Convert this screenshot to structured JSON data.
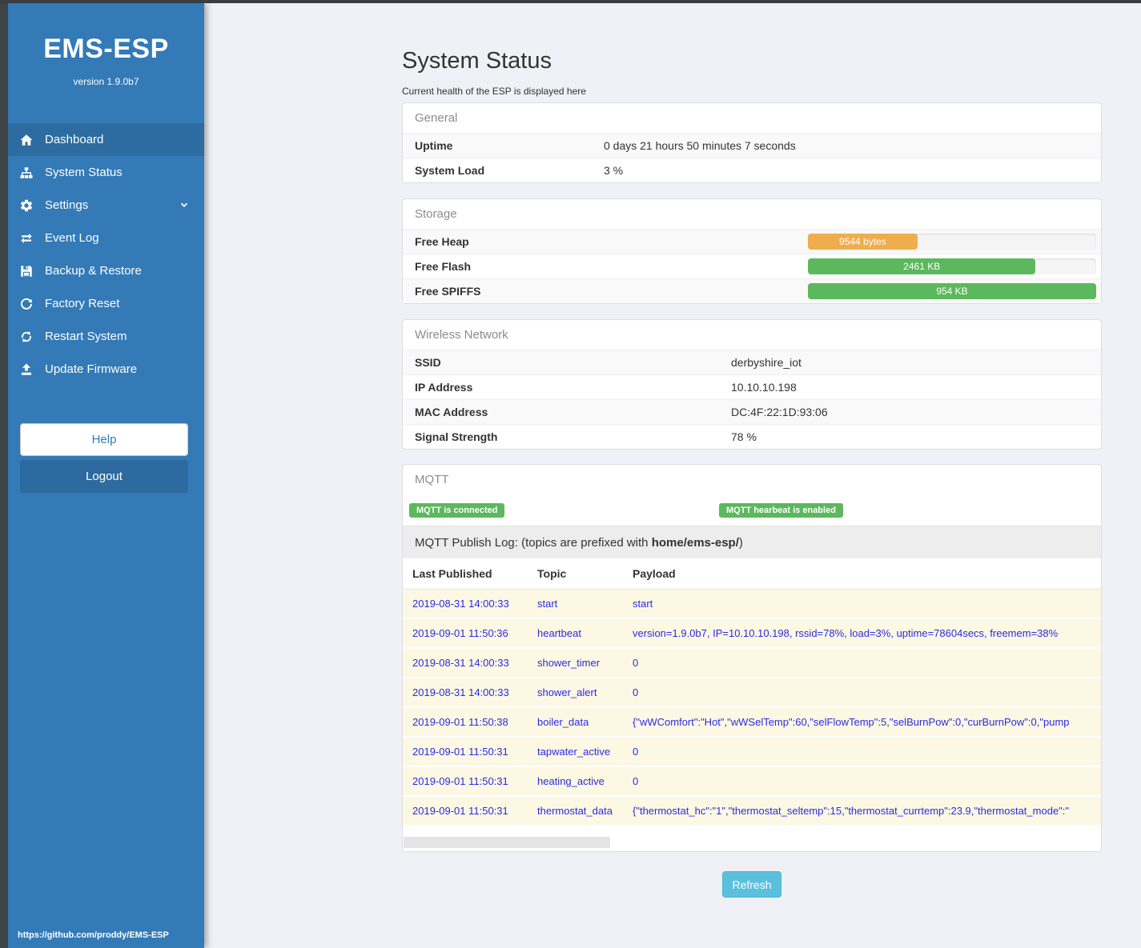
{
  "sidebar": {
    "title": "EMS-ESP",
    "version": "version 1.9.0b7",
    "items": [
      {
        "label": "Dashboard",
        "icon": "home-icon",
        "active": true
      },
      {
        "label": "System Status",
        "icon": "sitemap-icon",
        "active": false
      },
      {
        "label": "Settings",
        "icon": "gear-icon",
        "active": false,
        "chevron": true
      },
      {
        "label": "Event Log",
        "icon": "exchange-icon",
        "active": false
      },
      {
        "label": "Backup & Restore",
        "icon": "save-icon",
        "active": false
      },
      {
        "label": "Factory Reset",
        "icon": "redo-icon",
        "active": false
      },
      {
        "label": "Restart System",
        "icon": "sync-icon",
        "active": false
      },
      {
        "label": "Update Firmware",
        "icon": "upload-icon",
        "active": false
      }
    ],
    "help_label": "Help",
    "logout_label": "Logout",
    "footer_link": "https://github.com/proddy/EMS-ESP"
  },
  "header": {
    "title": "System Status",
    "subtitle": "Current health of the ESP is displayed here"
  },
  "panels": {
    "general": {
      "title": "General",
      "rows": [
        {
          "label": "Uptime",
          "value": "0 days 21 hours 50 minutes 7 seconds"
        },
        {
          "label": "System Load",
          "value": "3 %"
        }
      ]
    },
    "storage": {
      "title": "Storage",
      "rows": [
        {
          "label": "Free Heap",
          "bar_label": "9544 bytes",
          "percent": 38,
          "color": "#f0ad4e"
        },
        {
          "label": "Free Flash",
          "bar_label": "2461 KB",
          "percent": 79,
          "color": "#5cb85c"
        },
        {
          "label": "Free SPIFFS",
          "bar_label": "954 KB",
          "percent": 100,
          "color": "#5cb85c"
        }
      ]
    },
    "wireless": {
      "title": "Wireless Network",
      "rows": [
        {
          "label": "SSID",
          "value": "derbyshire_iot"
        },
        {
          "label": "IP Address",
          "value": "10.10.10.198"
        },
        {
          "label": "MAC Address",
          "value": "DC:4F:22:1D:93:06"
        },
        {
          "label": "Signal Strength",
          "value": "78 %"
        }
      ]
    },
    "mqtt": {
      "title": "MQTT",
      "badges": [
        "MQTT is connected",
        "MQTT hearbeat is enabled"
      ],
      "log_heading_prefix": "MQTT Publish Log: (topics are prefixed with ",
      "log_heading_bold": "home/ems-esp/",
      "log_heading_suffix": ")",
      "table": {
        "headers": [
          "Last Published",
          "Topic",
          "Payload"
        ],
        "rows": [
          {
            "time": "2019-08-31 14:00:33",
            "topic": "start",
            "payload": "start"
          },
          {
            "time": "2019-09-01 11:50:36",
            "topic": "heartbeat",
            "payload": "version=1.9.0b7, IP=10.10.10.198, rssid=78%, load=3%, uptime=78604secs, freemem=38%"
          },
          {
            "time": "2019-08-31 14:00:33",
            "topic": "shower_timer",
            "payload": "0"
          },
          {
            "time": "2019-08-31 14:00:33",
            "topic": "shower_alert",
            "payload": "0"
          },
          {
            "time": "2019-09-01 11:50:38",
            "topic": "boiler_data",
            "payload": "{\"wWComfort\":\"Hot\",\"wWSelTemp\":60,\"selFlowTemp\":5,\"selBurnPow\":0,\"curBurnPow\":0,\"pump"
          },
          {
            "time": "2019-09-01 11:50:31",
            "topic": "tapwater_active",
            "payload": "0"
          },
          {
            "time": "2019-09-01 11:50:31",
            "topic": "heating_active",
            "payload": "0"
          },
          {
            "time": "2019-09-01 11:50:31",
            "topic": "thermostat_data",
            "payload": "{\"thermostat_hc\":\"1\",\"thermostat_seltemp\":15,\"thermostat_currtemp\":23.9,\"thermostat_mode\":\""
          }
        ]
      }
    }
  },
  "refresh_label": "Refresh",
  "colors": {
    "sidebar_blue": "#337ab7",
    "active_item_blue": "#2d6ca0",
    "success_green": "#5cb85c",
    "warning_orange": "#f0ad4e",
    "info_cyan": "#5bc0de",
    "log_row_cream": "#fcf8e3",
    "log_text_blue": "#2b2be0"
  }
}
